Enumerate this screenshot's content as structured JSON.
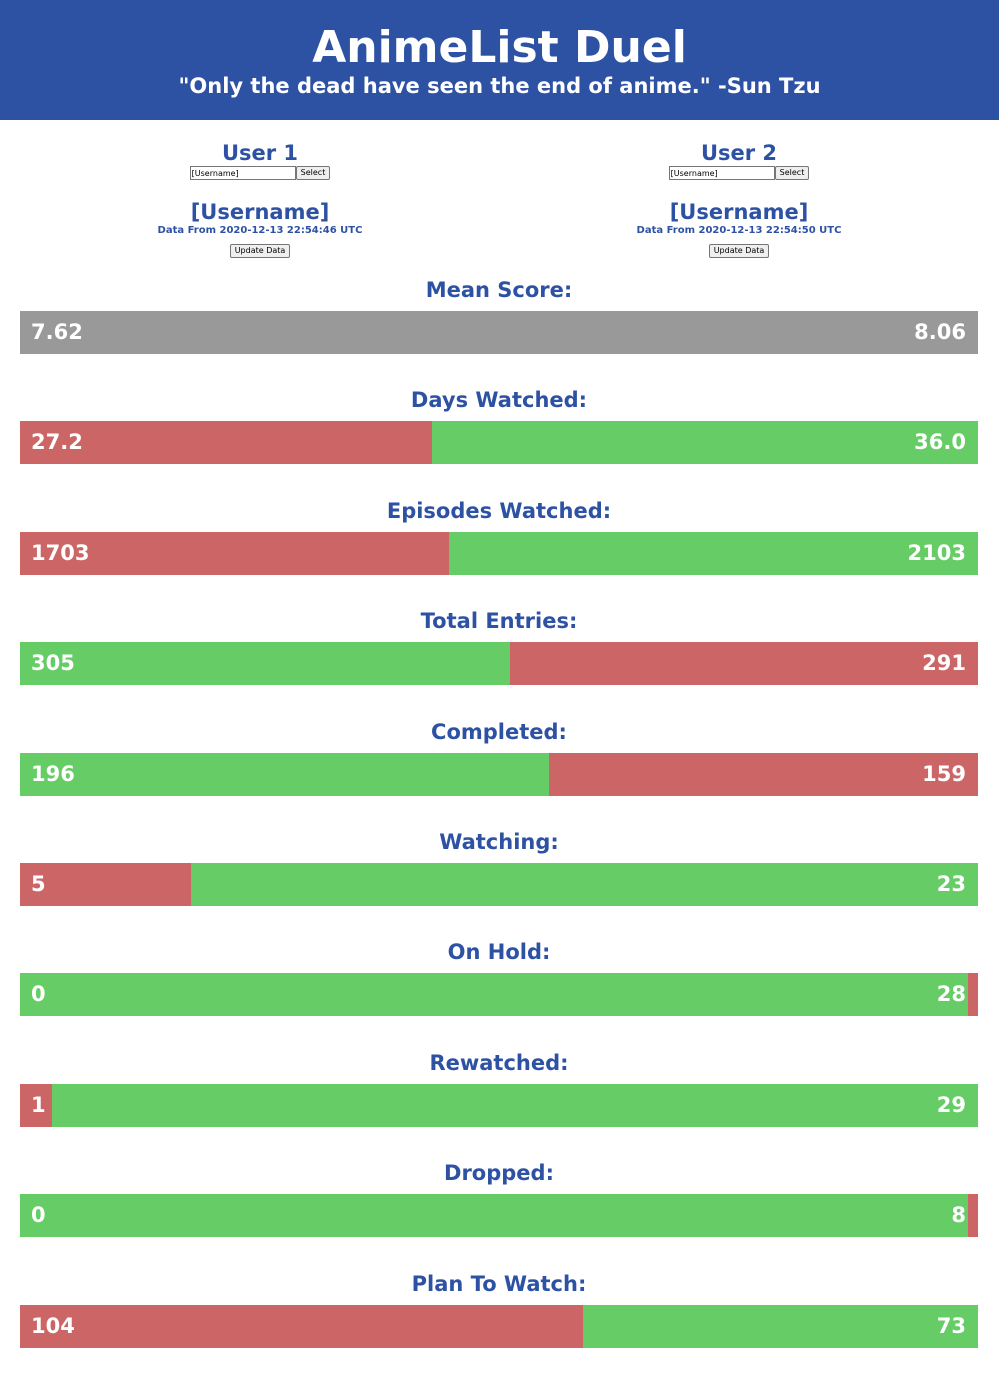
{
  "header": {
    "title": "AnimeList Duel",
    "quote": "\"Only the dead have seen the end of anime.\" -Sun Tzu"
  },
  "users": [
    {
      "label": "User 1",
      "input_value": "[Username]",
      "select_label": "Select",
      "username": "[Username]",
      "data_from": "Data From 2020-12-13 22:54:46 UTC",
      "update_label": "Update Data"
    },
    {
      "label": "User 2",
      "input_value": "[Username]",
      "select_label": "Select",
      "username": "[Username]",
      "data_from": "Data From 2020-12-13 22:54:50 UTC",
      "update_label": "Update Data"
    }
  ],
  "colors": {
    "brand": "#2e52a3",
    "win": "#66cc66",
    "lose": "#cc6666",
    "tie": "#999999"
  },
  "stats": [
    {
      "label": "Mean Score:",
      "user1": "7.62",
      "user2": "8.06",
      "u1_share": 0.5,
      "u1_color": "#999999",
      "u2_color": "#999999"
    },
    {
      "label": "Days Watched:",
      "user1": "27.2",
      "user2": "36.0",
      "u1_share": 0.43,
      "u1_color": "#cc6666",
      "u2_color": "#66cc66"
    },
    {
      "label": "Episodes Watched:",
      "user1": "1703",
      "user2": "2103",
      "u1_share": 0.4475,
      "u1_color": "#cc6666",
      "u2_color": "#66cc66"
    },
    {
      "label": "Total Entries:",
      "user1": "305",
      "user2": "291",
      "u1_share": 0.5118,
      "u1_color": "#66cc66",
      "u2_color": "#cc6666"
    },
    {
      "label": "Completed:",
      "user1": "196",
      "user2": "159",
      "u1_share": 0.5521,
      "u1_color": "#66cc66",
      "u2_color": "#cc6666"
    },
    {
      "label": "Watching:",
      "user1": "5",
      "user2": "23",
      "u1_share": 0.1786,
      "u1_color": "#cc6666",
      "u2_color": "#66cc66"
    },
    {
      "label": "On Hold:",
      "user1": "0",
      "user2": "28",
      "u1_share": 0.0,
      "u1_color": "#66cc66",
      "u2_color": "#cc6666",
      "u1_extends": true
    },
    {
      "label": "Rewatched:",
      "user1": "1",
      "user2": "29",
      "u1_share": 0.0333,
      "u1_color": "#cc6666",
      "u2_color": "#66cc66"
    },
    {
      "label": "Dropped:",
      "user1": "0",
      "user2": "8",
      "u1_share": 0.0,
      "u1_color": "#66cc66",
      "u2_color": "#cc6666",
      "u1_extends": true
    },
    {
      "label": "Plan To Watch:",
      "user1": "104",
      "user2": "73",
      "u1_share": 0.5876,
      "u1_color": "#cc6666",
      "u2_color": "#66cc66"
    }
  ]
}
